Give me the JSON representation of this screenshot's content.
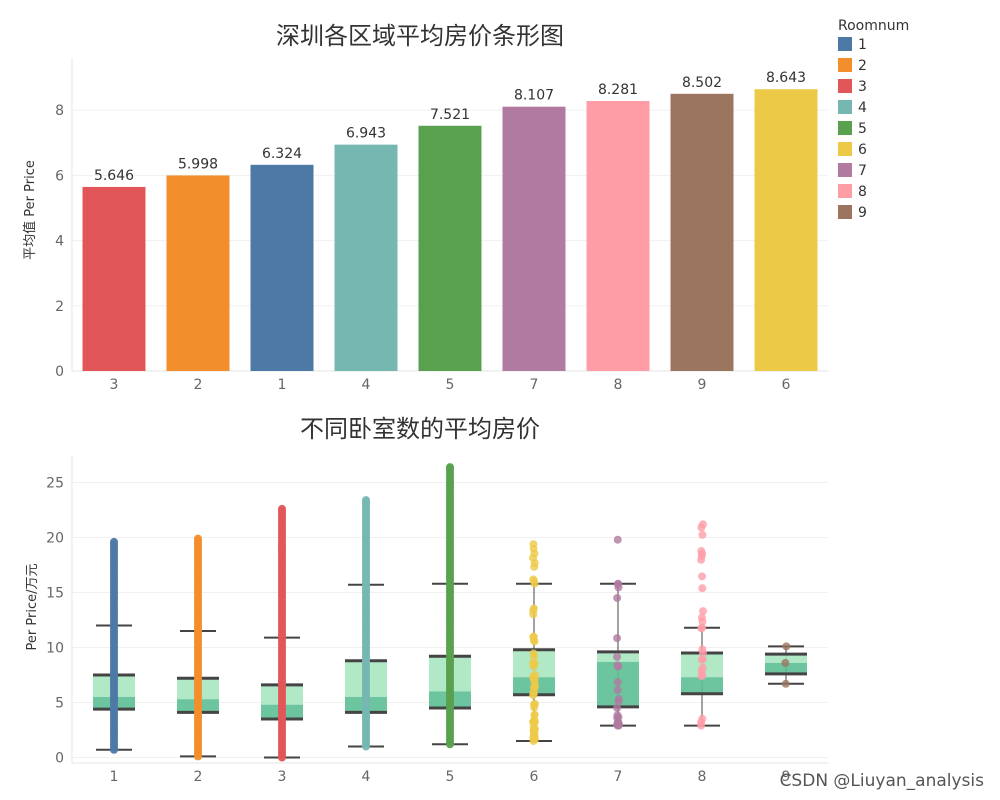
{
  "chart_data": [
    {
      "type": "bar",
      "title": "深圳各区域平均房价条形图",
      "ylabel": "平均值 Per Price",
      "ylim": [
        0,
        9.6
      ],
      "yticks": [
        0,
        2,
        4,
        6,
        8
      ],
      "categories": [
        "3",
        "2",
        "1",
        "4",
        "5",
        "7",
        "8",
        "9",
        "6"
      ],
      "values": [
        5.646,
        5.998,
        6.324,
        6.943,
        7.521,
        8.107,
        8.281,
        8.502,
        8.643
      ],
      "value_labels": [
        "5.646",
        "5.998",
        "6.324",
        "6.943",
        "7.521",
        "8.107",
        "8.281",
        "8.502",
        "8.643"
      ],
      "colors": [
        "#e15759",
        "#f28e2b",
        "#4e79a7",
        "#76b7b2",
        "#59a14f",
        "#b07aa1",
        "#ff9da7",
        "#9c755f",
        "#edc948"
      ],
      "legend": {
        "title": "Roomnum",
        "entries": [
          "1",
          "2",
          "3",
          "4",
          "5",
          "6",
          "7",
          "8",
          "9"
        ],
        "colors": [
          "#4e79a7",
          "#f28e2b",
          "#e15759",
          "#76b7b2",
          "#59a14f",
          "#edc948",
          "#b07aa1",
          "#ff9da7",
          "#9c755f"
        ]
      }
    },
    {
      "type": "box",
      "title": "不同卧室数的平均房价",
      "ylabel": "Per Price/万元",
      "ylim": [
        -0.5,
        27.5
      ],
      "yticks": [
        0,
        5,
        10,
        15,
        20,
        25
      ],
      "categories": [
        "1",
        "2",
        "3",
        "4",
        "5",
        "6",
        "7",
        "8",
        "9"
      ],
      "colors": [
        "#4e79a7",
        "#f28e2b",
        "#e15759",
        "#76b7b2",
        "#59a14f",
        "#edc948",
        "#b07aa1",
        "#ff9da7",
        "#9c755f"
      ],
      "boxes": [
        {
          "whisker_low": 0.7,
          "q1": 4.4,
          "median": 5.5,
          "q3": 7.5,
          "whisker_high": 12.0,
          "max": 19.6
        },
        {
          "whisker_low": 0.1,
          "q1": 4.1,
          "median": 5.3,
          "q3": 7.2,
          "whisker_high": 11.5,
          "max": 19.9
        },
        {
          "whisker_low": 0.0,
          "q1": 3.5,
          "median": 4.8,
          "q3": 6.6,
          "whisker_high": 10.9,
          "max": 22.6
        },
        {
          "whisker_low": 1.0,
          "q1": 4.1,
          "median": 5.5,
          "q3": 8.8,
          "whisker_high": 15.7,
          "max": 23.4
        },
        {
          "whisker_low": 1.2,
          "q1": 4.5,
          "median": 6.0,
          "q3": 9.2,
          "whisker_high": 15.8,
          "max": 26.4
        },
        {
          "whisker_low": 1.5,
          "q1": 5.7,
          "median": 7.3,
          "q3": 9.8,
          "whisker_high": 15.8,
          "max": 19.4
        },
        {
          "whisker_low": 2.9,
          "q1": 4.6,
          "median": 8.7,
          "q3": 9.6,
          "whisker_high": 15.8,
          "max": 19.8
        },
        {
          "whisker_low": 2.9,
          "q1": 5.8,
          "median": 7.3,
          "q3": 9.5,
          "whisker_high": 11.8,
          "max": 21.2
        },
        {
          "whisker_low": 6.7,
          "q1": 7.6,
          "median": 8.6,
          "q3": 9.4,
          "whisker_high": 10.1,
          "max": 10.1
        }
      ]
    }
  ],
  "watermark": "CSDN @Liuyan_analysis"
}
